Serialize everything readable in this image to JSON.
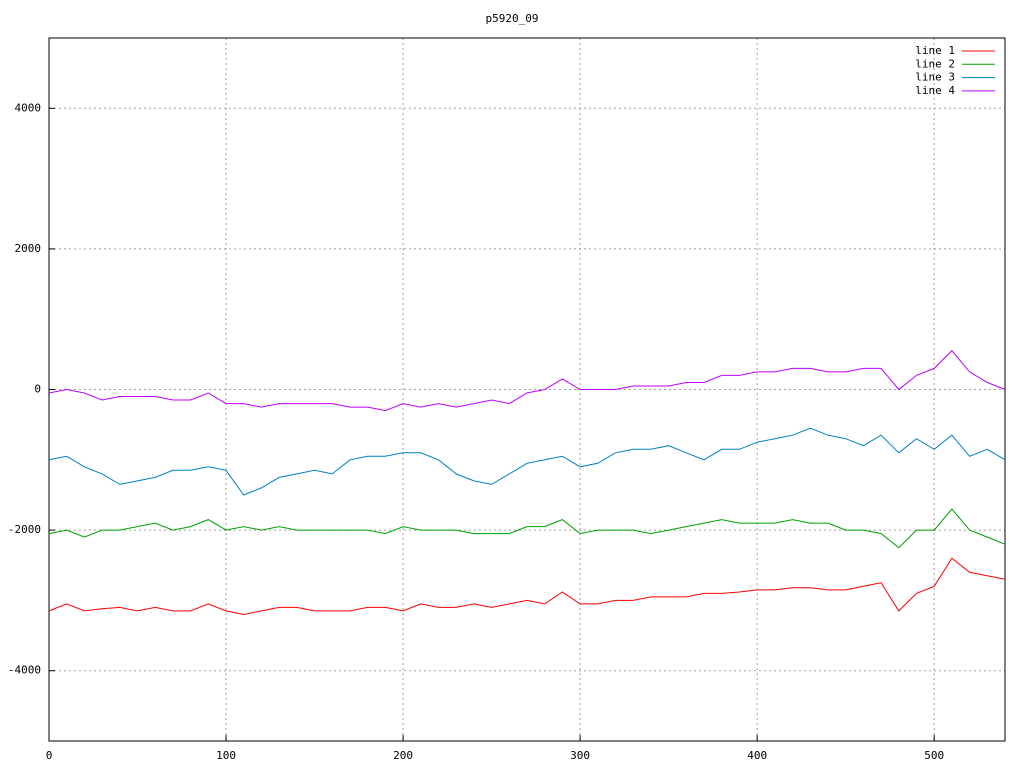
{
  "chart_data": {
    "type": "line",
    "title": "p5920_09",
    "x": [
      0,
      10,
      20,
      30,
      40,
      50,
      60,
      70,
      80,
      90,
      100,
      110,
      120,
      130,
      140,
      150,
      160,
      170,
      180,
      190,
      200,
      210,
      220,
      230,
      240,
      250,
      260,
      270,
      280,
      290,
      300,
      310,
      320,
      330,
      340,
      350,
      360,
      370,
      380,
      390,
      400,
      410,
      420,
      430,
      440,
      450,
      460,
      470,
      480,
      490,
      500,
      510,
      520,
      530,
      540
    ],
    "series": [
      {
        "name": "line 1",
        "color": "#ff0000",
        "values": [
          -3150,
          -3050,
          -3150,
          -3120,
          -3100,
          -3150,
          -3100,
          -3150,
          -3150,
          -3050,
          -3150,
          -3200,
          -3150,
          -3100,
          -3100,
          -3150,
          -3150,
          -3150,
          -3100,
          -3100,
          -3150,
          -3050,
          -3100,
          -3100,
          -3050,
          -3100,
          -3050,
          -3000,
          -3050,
          -2880,
          -3050,
          -3050,
          -3000,
          -3000,
          -2950,
          -2950,
          -2950,
          -2900,
          -2900,
          -2880,
          -2850,
          -2850,
          -2820,
          -2820,
          -2850,
          -2850,
          -2800,
          -2750,
          -3150,
          -2900,
          -2800,
          -2400,
          -2600,
          -2650,
          -2700
        ]
      },
      {
        "name": "line 2",
        "color": "#00a000",
        "values": [
          -2050,
          -2000,
          -2100,
          -2000,
          -2000,
          -1950,
          -1900,
          -2000,
          -1950,
          -1850,
          -2000,
          -1950,
          -2000,
          -1950,
          -2000,
          -2000,
          -2000,
          -2000,
          -2000,
          -2050,
          -1950,
          -2000,
          -2000,
          -2000,
          -2050,
          -2050,
          -2050,
          -1950,
          -1950,
          -1850,
          -2050,
          -2000,
          -2000,
          -2000,
          -2050,
          -2000,
          -1950,
          -1900,
          -1850,
          -1900,
          -1900,
          -1900,
          -1850,
          -1900,
          -1900,
          -2000,
          -2000,
          -2050,
          -2250,
          -2000,
          -2000,
          -1700,
          -2000,
          -2100,
          -2200
        ]
      },
      {
        "name": "line 3",
        "color": "#0080c0",
        "values": [
          -1000,
          -950,
          -1100,
          -1200,
          -1350,
          -1300,
          -1250,
          -1150,
          -1150,
          -1100,
          -1150,
          -1500,
          -1400,
          -1250,
          -1200,
          -1150,
          -1200,
          -1000,
          -950,
          -950,
          -900,
          -900,
          -1000,
          -1200,
          -1300,
          -1350,
          -1200,
          -1050,
          -1000,
          -950,
          -1100,
          -1050,
          -900,
          -850,
          -850,
          -800,
          -900,
          -1000,
          -850,
          -850,
          -750,
          -700,
          -650,
          -550,
          -650,
          -700,
          -800,
          -650,
          -900,
          -700,
          -850,
          -650,
          -950,
          -850,
          -1000
        ]
      },
      {
        "name": "line 4",
        "color": "#c000ff",
        "values": [
          -50,
          0,
          -50,
          -150,
          -100,
          -100,
          -100,
          -150,
          -150,
          -50,
          -200,
          -200,
          -250,
          -200,
          -200,
          -200,
          -200,
          -250,
          -250,
          -300,
          -200,
          -250,
          -200,
          -250,
          -200,
          -150,
          -200,
          -50,
          0,
          150,
          0,
          0,
          0,
          50,
          50,
          50,
          100,
          100,
          200,
          200,
          250,
          250,
          300,
          300,
          250,
          250,
          300,
          300,
          0,
          200,
          300,
          550,
          250,
          100,
          0
        ]
      }
    ],
    "xlim": [
      0,
      540
    ],
    "xticks": [
      0,
      100,
      200,
      300,
      400,
      500
    ],
    "ylim": [
      -5000,
      5000
    ],
    "yticks": [
      -4000,
      -2000,
      0,
      2000,
      4000
    ],
    "grid": true,
    "legend": "top-right"
  }
}
